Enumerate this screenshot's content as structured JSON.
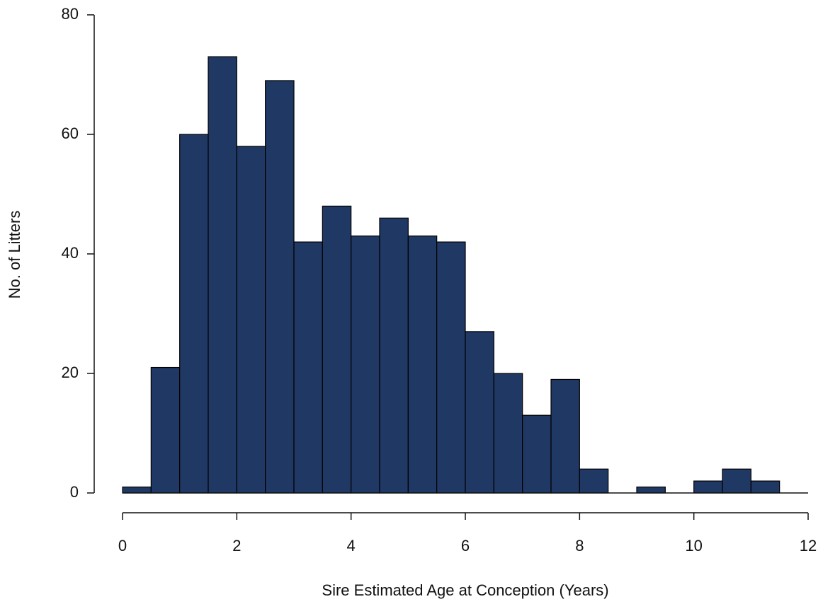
{
  "chart_data": {
    "type": "histogram",
    "x_label": "Sire Estimated Age at Conception (Years)",
    "y_label": "No. of Litters",
    "bins": [
      0,
      0.5,
      1,
      1.5,
      2,
      2.5,
      3,
      3.5,
      4,
      4.5,
      5,
      5.5,
      6,
      6.5,
      7,
      7.5,
      8,
      8.5,
      9,
      9.5,
      10,
      10.5,
      11,
      11.5
    ],
    "values": [
      1,
      21,
      60,
      73,
      58,
      69,
      42,
      48,
      43,
      46,
      43,
      42,
      27,
      20,
      13,
      19,
      4,
      0,
      1,
      0,
      2,
      4,
      2
    ],
    "color": "#203864",
    "xlim": [
      0,
      12
    ],
    "xticks": [
      0,
      2,
      4,
      6,
      8,
      10,
      12
    ],
    "ylim": [
      0,
      80
    ],
    "yticks": [
      0,
      20,
      40,
      60,
      80
    ]
  }
}
